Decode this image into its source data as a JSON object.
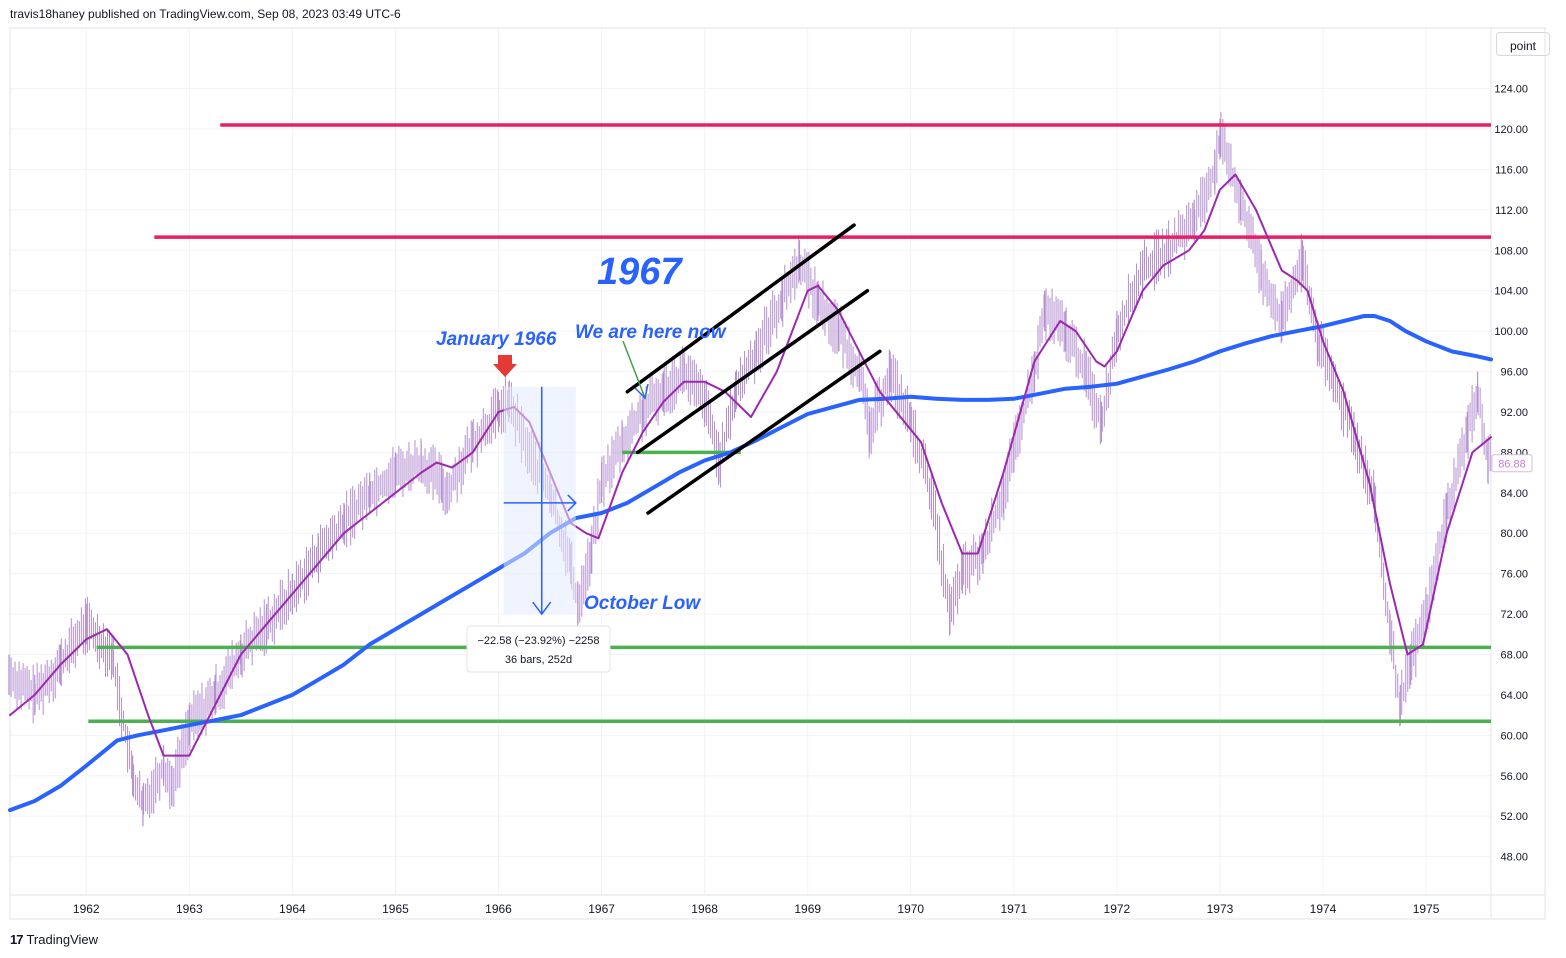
{
  "header": {
    "published": "travis18haney published on TradingView.com, Sep 08, 2023 03:49 UTC-6"
  },
  "toolbar": {
    "scale_mode": "point"
  },
  "footer": {
    "brand": "TradingView",
    "logo_glyph": "17"
  },
  "colors": {
    "price_bars": "#b48fd0",
    "ma_fast": "#9c27b0",
    "ma_slow": "#2962ff",
    "resistance": "#e91e63",
    "support": "#4caf50",
    "channel": "#000000",
    "annotation": "#2962ff",
    "arrow_red": "#e53935",
    "measure_fill": "#e3ebfd"
  },
  "chart_data": {
    "type": "line",
    "title": "",
    "xlabel": "",
    "ylabel": "",
    "x_ticks": [
      "1962",
      "1963",
      "1964",
      "1965",
      "1966",
      "1967",
      "1968",
      "1969",
      "1970",
      "1971",
      "1972",
      "1973",
      "1974",
      "1975"
    ],
    "y_ticks": [
      48,
      52,
      56,
      60,
      64,
      68,
      72,
      76,
      80,
      84,
      88,
      92,
      96,
      100,
      104,
      108,
      112,
      116,
      120,
      124
    ],
    "y_tick_labels": [
      "48.00",
      "52.00",
      "56.00",
      "60.00",
      "64.00",
      "68.00",
      "72.00",
      "76.00",
      "80.00",
      "84.00",
      "88.00",
      "92.00",
      "96.00",
      "100.00",
      "104.00",
      "108.00",
      "112.00",
      "116.00",
      "120.00",
      "124.00"
    ],
    "xlim": [
      1961.26,
      1975.63
    ],
    "ylim": [
      44.2,
      130.0
    ],
    "last_price": {
      "label": "86.88",
      "value": 86.88
    },
    "series": [
      {
        "name": "Price",
        "style": "bars",
        "x": [
          1961.25,
          1961.5,
          1961.75,
          1962.0,
          1962.25,
          1962.45,
          1962.55,
          1962.75,
          1962.83,
          1963.0,
          1963.25,
          1963.5,
          1963.75,
          1964.0,
          1964.25,
          1964.5,
          1964.75,
          1965.0,
          1965.25,
          1965.45,
          1965.5,
          1965.75,
          1966.0,
          1966.1,
          1966.3,
          1966.5,
          1966.7,
          1966.77,
          1966.9,
          1967.0,
          1967.2,
          1967.4,
          1967.6,
          1967.8,
          1968.0,
          1968.15,
          1968.3,
          1968.5,
          1968.75,
          1968.92,
          1969.1,
          1969.3,
          1969.5,
          1969.6,
          1969.8,
          1970.0,
          1970.2,
          1970.38,
          1970.5,
          1970.7,
          1970.9,
          1971.0,
          1971.2,
          1971.3,
          1971.5,
          1971.7,
          1971.85,
          1972.0,
          1972.25,
          1972.5,
          1972.75,
          1972.95,
          1973.0,
          1973.2,
          1973.4,
          1973.6,
          1973.8,
          1973.95,
          1974.1,
          1974.3,
          1974.5,
          1974.65,
          1974.75,
          1974.85,
          1975.0,
          1975.2,
          1975.4,
          1975.5,
          1975.6
        ],
        "values": [
          66,
          64,
          67,
          71,
          68,
          56,
          53,
          57,
          55,
          61,
          64,
          68,
          71,
          74,
          78,
          81,
          84,
          86,
          87,
          85,
          84,
          89,
          92,
          93,
          88,
          84,
          77,
          73,
          78,
          85,
          89,
          92,
          94,
          96,
          93,
          87,
          94,
          98,
          103,
          107,
          103,
          100,
          96,
          90,
          96,
          91,
          84,
          72,
          76,
          78,
          84,
          88,
          96,
          102,
          100,
          96,
          91,
          100,
          106,
          108,
          111,
          116,
          119,
          113,
          106,
          101,
          107,
          99,
          95,
          90,
          83,
          70,
          63,
          67,
          72,
          82,
          90,
          94,
          87
        ]
      },
      {
        "name": "MA fast",
        "style": "line",
        "x": [
          1961.26,
          1961.5,
          1961.75,
          1962.0,
          1962.2,
          1962.4,
          1962.6,
          1962.75,
          1963.0,
          1963.25,
          1963.5,
          1963.75,
          1964.0,
          1964.25,
          1964.5,
          1964.75,
          1965.0,
          1965.25,
          1965.4,
          1965.55,
          1965.75,
          1966.0,
          1966.15,
          1966.3,
          1966.5,
          1966.7,
          1966.85,
          1966.97,
          1967.2,
          1967.4,
          1967.6,
          1967.8,
          1968.0,
          1968.2,
          1968.45,
          1968.7,
          1969.0,
          1969.1,
          1969.3,
          1969.5,
          1969.7,
          1969.9,
          1970.1,
          1970.3,
          1970.5,
          1970.65,
          1970.9,
          1971.2,
          1971.45,
          1971.6,
          1971.8,
          1971.88,
          1972.0,
          1972.25,
          1972.45,
          1972.7,
          1972.85,
          1973.0,
          1973.15,
          1973.35,
          1973.6,
          1973.75,
          1973.85,
          1974.0,
          1974.2,
          1974.45,
          1974.65,
          1974.82,
          1974.97,
          1975.2,
          1975.45,
          1975.63
        ],
        "values": [
          62,
          64,
          67,
          69.5,
          70.5,
          68,
          62,
          58,
          58,
          63,
          68,
          71,
          74,
          77,
          80,
          82,
          84,
          86,
          87,
          86.5,
          88,
          92,
          92.5,
          91,
          86,
          81,
          80,
          79.5,
          86,
          90,
          93,
          95,
          95,
          94,
          91.5,
          96,
          104,
          104.5,
          102,
          98,
          94,
          91.5,
          89,
          83,
          78,
          78,
          86,
          97,
          101,
          100,
          97,
          96.5,
          98,
          104,
          106.5,
          108,
          110,
          114,
          115.5,
          112,
          106,
          105,
          104,
          99,
          94,
          85,
          75,
          68,
          69,
          80,
          88,
          89.5
        ]
      },
      {
        "name": "MA slow",
        "style": "line",
        "x": [
          1961.26,
          1961.5,
          1961.75,
          1962.0,
          1962.3,
          1962.5,
          1962.75,
          1963.0,
          1963.25,
          1963.5,
          1963.75,
          1964.0,
          1964.25,
          1964.5,
          1964.75,
          1965.0,
          1965.25,
          1965.5,
          1965.75,
          1966.0,
          1966.25,
          1966.5,
          1966.75,
          1967.0,
          1967.25,
          1967.5,
          1967.75,
          1968.0,
          1968.25,
          1968.5,
          1968.75,
          1969.0,
          1969.25,
          1969.5,
          1969.75,
          1970.0,
          1970.25,
          1970.5,
          1970.75,
          1971.0,
          1971.25,
          1971.5,
          1971.75,
          1972.0,
          1972.25,
          1972.5,
          1972.75,
          1973.0,
          1973.25,
          1973.5,
          1973.75,
          1974.0,
          1974.2,
          1974.4,
          1974.5,
          1974.65,
          1974.8,
          1975.0,
          1975.25,
          1975.5,
          1975.63
        ],
        "values": [
          52.6,
          53.5,
          55,
          57,
          59.5,
          60,
          60.5,
          61,
          61.5,
          62,
          63,
          64,
          65.5,
          67,
          69,
          70.5,
          72,
          73.5,
          75,
          76.5,
          78,
          80,
          81.5,
          82,
          83,
          84.5,
          86,
          87.2,
          88,
          89.2,
          90.5,
          91.8,
          92.5,
          93.2,
          93.3,
          93.5,
          93.3,
          93.2,
          93.2,
          93.3,
          93.8,
          94.3,
          94.5,
          94.8,
          95.5,
          96.2,
          97,
          98,
          98.8,
          99.5,
          100,
          100.5,
          101,
          101.5,
          101.5,
          101,
          100,
          99,
          98,
          97.5,
          97.2
        ]
      }
    ],
    "horizontal_levels": [
      {
        "name": "resistance-high",
        "value": 120.4,
        "x_start": 1963.3
      },
      {
        "name": "resistance-mid",
        "value": 109.3,
        "x_start": 1962.66
      },
      {
        "name": "support-upper",
        "value": 68.7,
        "x_start": 1962.1
      },
      {
        "name": "support-lower",
        "value": 61.4,
        "x_start": 1962.02
      }
    ],
    "short_support": {
      "value": 88.0,
      "x_start": 1967.2,
      "x_end": 1968.35
    },
    "channel_lines": [
      {
        "x1": 1967.25,
        "y1": 94.0,
        "x2": 1969.45,
        "y2": 110.5
      },
      {
        "x1": 1967.35,
        "y1": 88.0,
        "x2": 1969.58,
        "y2": 104.0
      },
      {
        "x1": 1967.45,
        "y1": 82.0,
        "x2": 1969.7,
        "y2": 98.0
      }
    ],
    "annotations": {
      "big_year": "1967",
      "jan1966": "January 1966",
      "here_now": "We are here now",
      "oct_low": "October Low"
    },
    "measurement": {
      "x_start": 1966.05,
      "x_end": 1966.75,
      "y_top": 94.5,
      "y_bottom": 72.0,
      "line1": "−22.58 (−23.92%) −2258",
      "line2": "36 bars, 252d"
    }
  }
}
